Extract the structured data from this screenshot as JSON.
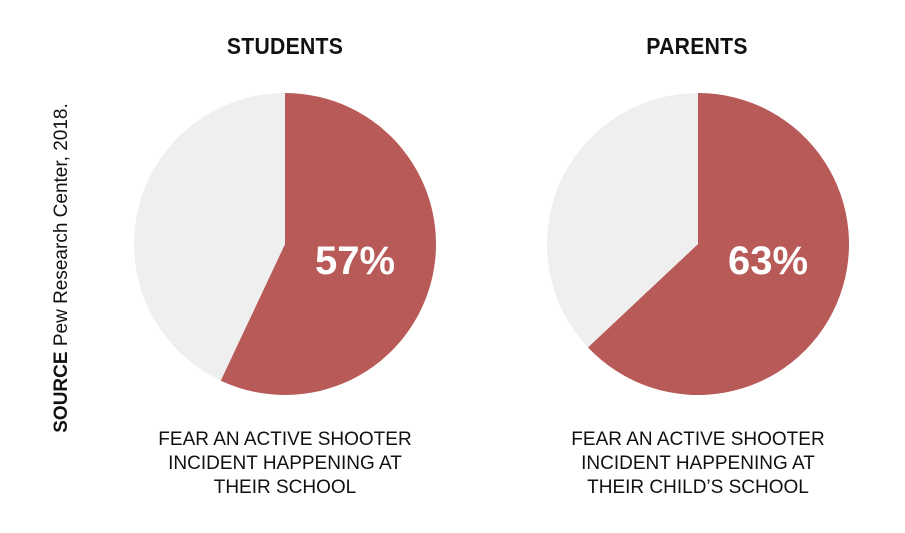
{
  "source": {
    "label": "SOURCE",
    "text": "Pew Research Center, 2018."
  },
  "colors": {
    "highlight": "#b85a58",
    "remainder": "#efefef"
  },
  "chart_data": [
    {
      "type": "pie",
      "title": "STUDENTS",
      "slices": [
        {
          "label": "57%",
          "value": 57
        },
        {
          "value": 43
        }
      ],
      "caption": [
        "FEAR AN ACTIVE SHOOTER",
        "INCIDENT HAPPENING AT",
        "THEIR SCHOOL"
      ]
    },
    {
      "type": "pie",
      "title": "PARENTS",
      "slices": [
        {
          "label": "63%",
          "value": 63
        },
        {
          "value": 37
        }
      ],
      "caption": [
        "FEAR AN ACTIVE SHOOTER",
        "INCIDENT HAPPENING AT",
        "THEIR CHILD’S SCHOOL"
      ]
    }
  ]
}
